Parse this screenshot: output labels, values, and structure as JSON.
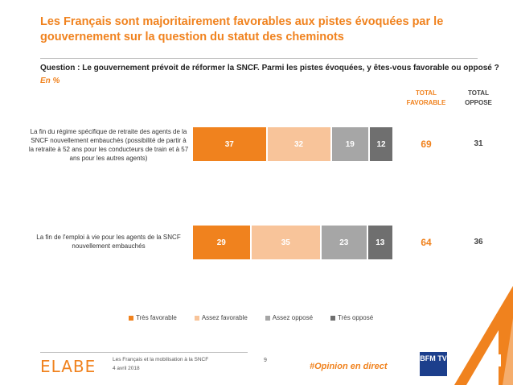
{
  "title": "Les Français sont majoritairement favorables aux pistes évoquées par le gouvernement sur la question du statut des cheminots",
  "question": "Question : Le gouvernement prévoit de réformer la SNCF. Parmi les pistes évoquées, y êtes-vous favorable ou opposé ?",
  "unit": "En  %",
  "columns": {
    "total_favorable": "TOTAL FAVORABLE",
    "total_oppose": "TOTAL OPPOSE"
  },
  "chart_data": {
    "type": "bar",
    "orientation": "horizontal",
    "stacked": true,
    "categories": [
      "La fin du régime spécifique de retraite des agents de la SNCF nouvellement embauchés (possibilité de partir à la retraite à 52 ans pour les conducteurs de train et à 57 ans pour les autres agents)",
      "La fin de l'emploi à vie pour les agents de la SNCF nouvellement embauchés"
    ],
    "series": [
      {
        "name": "Très favorable",
        "color": "#f0821e",
        "values": [
          37,
          29
        ]
      },
      {
        "name": "Assez favorable",
        "color": "#f8c49a",
        "values": [
          32,
          35
        ]
      },
      {
        "name": "Assez opposé",
        "color": "#a6a6a6",
        "values": [
          19,
          23
        ]
      },
      {
        "name": "Très opposé",
        "color": "#6f6f6f",
        "values": [
          12,
          13
        ]
      }
    ],
    "total_favorable": [
      69,
      64
    ],
    "total_oppose": [
      31,
      36
    ],
    "legend_position": "bottom"
  },
  "footer": {
    "logo": "ELABE",
    "line1": "Les Français et la mobilisation à la SNCF",
    "line2": "4 avril 2018",
    "page": "9",
    "hashtag": "#Opinion en direct",
    "partner_logo": "BFM TV"
  }
}
